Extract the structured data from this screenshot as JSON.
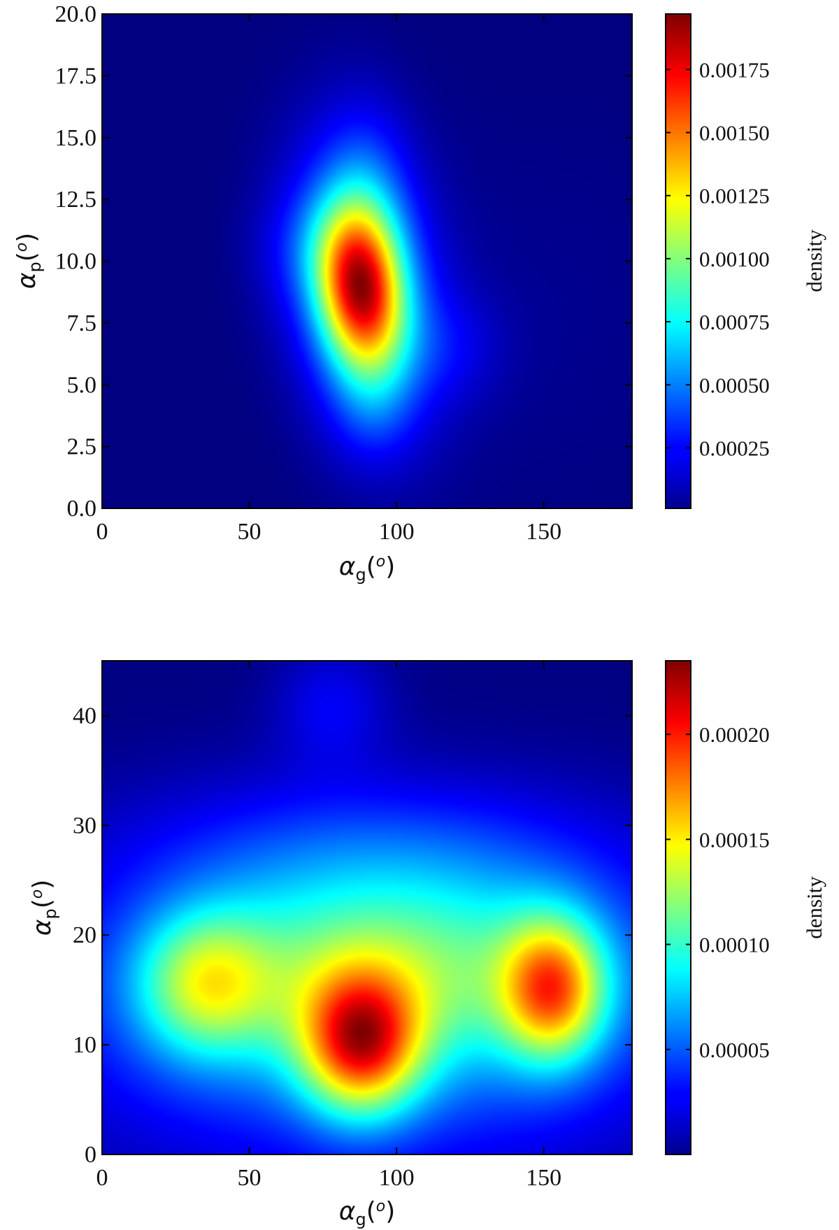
{
  "chart_data": [
    {
      "type": "heatmap",
      "title": "",
      "xlabel": {
        "symbol": "α",
        "subscript": "g",
        "unit_open": "(",
        "unit_sup": "o",
        "unit_close": ")"
      },
      "ylabel": {
        "symbol": "α",
        "subscript": "p",
        "unit_open": "(",
        "unit_sup": "o",
        "unit_close": ")"
      },
      "xlim": [
        0,
        180
      ],
      "ylim": [
        0,
        20
      ],
      "xticks": [
        0,
        50,
        100,
        150
      ],
      "xtick_labels": [
        "0",
        "50",
        "100",
        "150"
      ],
      "yticks": [
        0,
        2.5,
        5,
        7.5,
        10,
        12.5,
        15,
        17.5,
        20
      ],
      "ytick_labels": [
        "0.0",
        "2.5",
        "5.0",
        "7.5",
        "10.0",
        "12.5",
        "15.0",
        "17.5",
        "20.0"
      ],
      "colormap": "jet",
      "colorbar": {
        "label": "density",
        "vmin": 1e-05,
        "vmax": 0.00197,
        "ticks": [
          0.00025,
          0.0005,
          0.00075,
          0.001,
          0.00125,
          0.0015,
          0.00175
        ],
        "tick_labels": [
          "0.00025",
          "0.00050",
          "0.00075",
          "0.00100",
          "0.00125",
          "0.00150",
          "0.00175"
        ]
      },
      "peaks": [
        {
          "x": 88,
          "y": 8.8,
          "density": 0.00197
        }
      ]
    },
    {
      "type": "heatmap",
      "title": "",
      "xlabel": {
        "symbol": "α",
        "subscript": "g",
        "unit_open": "(",
        "unit_sup": "o",
        "unit_close": ")"
      },
      "ylabel": {
        "symbol": "α",
        "subscript": "p",
        "unit_open": "(",
        "unit_sup": "o",
        "unit_close": ")"
      },
      "xlim": [
        0,
        180
      ],
      "ylim": [
        0,
        45
      ],
      "xticks": [
        0,
        50,
        100,
        150
      ],
      "xtick_labels": [
        "0",
        "50",
        "100",
        "150"
      ],
      "yticks": [
        0,
        10,
        20,
        30,
        40
      ],
      "ytick_labels": [
        "0",
        "10",
        "20",
        "30",
        "40"
      ],
      "colormap": "jet",
      "colorbar": {
        "label": "density",
        "vmin": 0.0,
        "vmax": 0.000235,
        "ticks": [
          5e-05,
          0.0001,
          0.00015,
          0.0002
        ],
        "tick_labels": [
          "0.00005",
          "0.00010",
          "0.00015",
          "0.00020"
        ]
      },
      "peaks": [
        {
          "x": 88,
          "y": 10,
          "density": 0.000235
        },
        {
          "x": 153,
          "y": 15,
          "density": 0.00022
        },
        {
          "x": 35,
          "y": 15,
          "density": 0.00018
        },
        {
          "x": 78,
          "y": 41,
          "density": 7e-05
        }
      ]
    }
  ]
}
